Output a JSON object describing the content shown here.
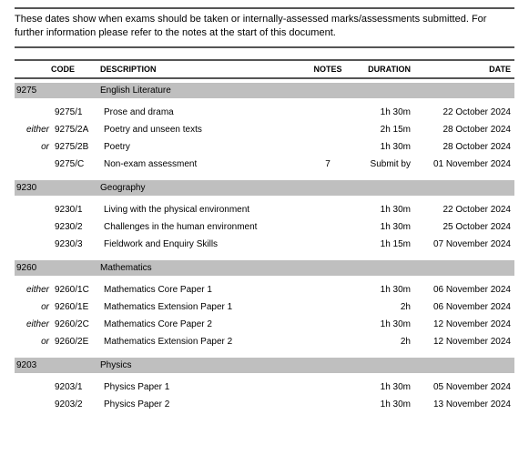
{
  "intro": "These dates show when exams should be taken or internally-assessed marks/assessments submitted.  For further information please refer to the notes at the start of this document.",
  "headers": {
    "code": "CODE",
    "description": "DESCRIPTION",
    "notes": "NOTES",
    "duration": "DURATION",
    "date": "DATE"
  },
  "subjects": [
    {
      "code": "9275",
      "name": "English Literature",
      "rows": [
        {
          "qual": "",
          "code": "9275/1",
          "desc": "Prose and drama",
          "notes": "",
          "dur": "1h 30m",
          "date": "22   October   2024"
        },
        {
          "qual": "either",
          "code": "9275/2A",
          "desc": "Poetry and unseen texts",
          "notes": "",
          "dur": "2h 15m",
          "date": "28   October   2024"
        },
        {
          "qual": "or",
          "code": "9275/2B",
          "desc": "Poetry",
          "notes": "",
          "dur": "1h 30m",
          "date": "28   October   2024"
        },
        {
          "qual": "",
          "code": "9275/C",
          "desc": "Non-exam assessment",
          "notes": "7",
          "dur": "Submit by",
          "date": "01 November 2024"
        }
      ]
    },
    {
      "code": "9230",
      "name": "Geography",
      "rows": [
        {
          "qual": "",
          "code": "9230/1",
          "desc": "Living with the physical environment",
          "notes": "",
          "dur": "1h 30m",
          "date": "22 October 2024"
        },
        {
          "qual": "",
          "code": "9230/2",
          "desc": "Challenges in the human environment",
          "notes": "",
          "dur": "1h 30m",
          "date": "25 October 2024"
        },
        {
          "qual": "",
          "code": "9230/3",
          "desc": "Fieldwork and Enquiry Skills",
          "notes": "",
          "dur": "1h 15m",
          "date": "07 November 2024"
        }
      ]
    },
    {
      "code": "9260",
      "name": "Mathematics",
      "rows": [
        {
          "qual": "either",
          "code": "9260/1C",
          "desc": "Mathematics Core Paper 1",
          "notes": "",
          "dur": "1h 30m",
          "date": "06 November 2024"
        },
        {
          "qual": "or",
          "code": "9260/1E",
          "desc": "Mathematics Extension Paper 1",
          "notes": "",
          "dur": "2h",
          "date": "06 November 2024"
        },
        {
          "qual": "either",
          "code": "9260/2C",
          "desc": "Mathematics Core Paper 2",
          "notes": "",
          "dur": "1h 30m",
          "date": "12 November 2024"
        },
        {
          "qual": "or",
          "code": "9260/2E",
          "desc": "Mathematics Extension Paper 2",
          "notes": "",
          "dur": "2h",
          "date": "12 November 2024"
        }
      ]
    },
    {
      "code": "9203",
      "name": "Physics",
      "rows": [
        {
          "qual": "",
          "code": "9203/1",
          "desc": "Physics  Paper 1",
          "notes": "",
          "dur": "1h 30m",
          "date": "05 November 2024"
        },
        {
          "qual": "",
          "code": "9203/2",
          "desc": "Physics Paper 2",
          "notes": "",
          "dur": "1h 30m",
          "date": "13 November 2024"
        }
      ]
    }
  ]
}
